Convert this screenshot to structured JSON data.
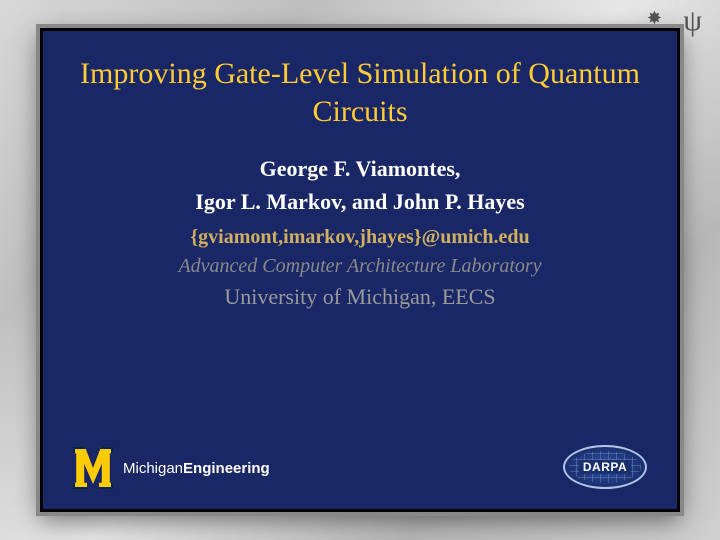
{
  "decorations": {
    "star1": "✸",
    "psi": "ψ",
    "star2": "✸"
  },
  "slide": {
    "title": "Improving Gate-Level Simulation of Quantum Circuits",
    "authors_line1": "George F. Viamontes,",
    "authors_line2": "Igor L. Markov, and John P. Hayes",
    "emails": "{gviamont,imarkov,jhayes}@umich.edu",
    "lab": "Advanced Computer Architecture Laboratory",
    "university": "University of Michigan, EECS"
  },
  "logos": {
    "michigan_prefix": "Michigan",
    "michigan_suffix": "Engineering",
    "darpa": "DARPA"
  },
  "colors": {
    "slide_bg": "#1a2766",
    "title_color": "#ffcc33",
    "author_color": "#ffffff",
    "email_color": "#d0b060",
    "lab_color": "#8a8a8a",
    "univ_color": "#9a9a9a",
    "maize": "#ffcb05"
  }
}
